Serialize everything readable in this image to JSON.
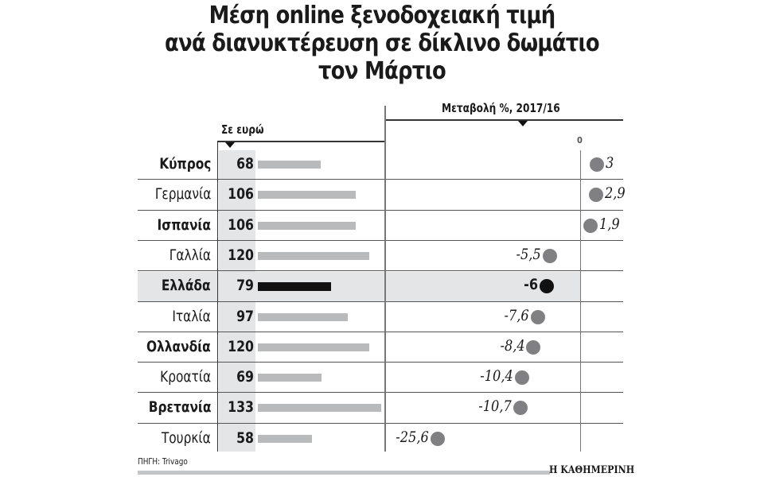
{
  "title_lines": [
    "Μέση online ξενοδοχειακή τιμή",
    "ανά διανυκτέρευση σε δίκλινο δωμάτιο",
    "τον Μάρτιο"
  ],
  "left_header": "Σε ευρώ",
  "right_header": "Μεταβολή %, 2017/16",
  "zero_label": "0",
  "source": "ΠΗΓΗ: Trivago",
  "brand": "Η ΚΑΘΗΜΕΡΙΝΗ",
  "colors": {
    "bar": "#b9babc",
    "highlight_bar": "#111111",
    "dot": "#808083",
    "highlight_dot": "#111111",
    "row_highlight": "#e4e5e7"
  },
  "rows": [
    {
      "name": "Κύπρος",
      "price": "68",
      "change": "3",
      "bold": true,
      "highlight": false
    },
    {
      "name": "Γερμανία",
      "price": "106",
      "change": "2,9",
      "bold": false,
      "highlight": false
    },
    {
      "name": "Ισπανία",
      "price": "106",
      "change": "1,9",
      "bold": true,
      "highlight": false
    },
    {
      "name": "Γαλλία",
      "price": "120",
      "change": "-5,5",
      "bold": false,
      "highlight": false
    },
    {
      "name": "Ελλάδα",
      "price": "79",
      "change": "-6",
      "bold": true,
      "highlight": true
    },
    {
      "name": "Ιταλία",
      "price": "97",
      "change": "-7,6",
      "bold": false,
      "highlight": false
    },
    {
      "name": "Ολλανδία",
      "price": "120",
      "change": "-8,4",
      "bold": true,
      "highlight": false
    },
    {
      "name": "Κροατία",
      "price": "69",
      "change": "-10,4",
      "bold": false,
      "highlight": false
    },
    {
      "name": "Βρετανία",
      "price": "133",
      "change": "-10,7",
      "bold": true,
      "highlight": false
    },
    {
      "name": "Τουρκία",
      "price": "58",
      "change": "-25,6",
      "bold": false,
      "highlight": false
    }
  ],
  "chart_data": [
    {
      "type": "bar",
      "title": "Μέση online ξενοδοχειακή τιμή ανά διανυκτέρευση σε δίκλινο δωμάτιο τον Μάρτιο",
      "subtitle": "Σε ευρώ",
      "orientation": "horizontal",
      "categories": [
        "Κύπρος",
        "Γερμανία",
        "Ισπανία",
        "Γαλλία",
        "Ελλάδα",
        "Ιταλία",
        "Ολλανδία",
        "Κροατία",
        "Βρετανία",
        "Τουρκία"
      ],
      "values": [
        68,
        106,
        106,
        120,
        79,
        97,
        120,
        69,
        133,
        58
      ],
      "highlight": "Ελλάδα",
      "xlabel": "",
      "ylabel": "",
      "grid": false
    },
    {
      "type": "scatter",
      "title": "Μεταβολή %, 2017/16",
      "categories": [
        "Κύπρος",
        "Γερμανία",
        "Ισπανία",
        "Γαλλία",
        "Ελλάδα",
        "Ιταλία",
        "Ολλανδία",
        "Κροατία",
        "Βρετανία",
        "Τουρκία"
      ],
      "values": [
        3,
        2.9,
        1.9,
        -5.5,
        -6,
        -7.6,
        -8.4,
        -10.4,
        -10.7,
        -25.6
      ],
      "axis_zero_label": "0",
      "highlight": "Ελλάδα",
      "source": "ΠΗΓΗ: Trivago"
    }
  ]
}
